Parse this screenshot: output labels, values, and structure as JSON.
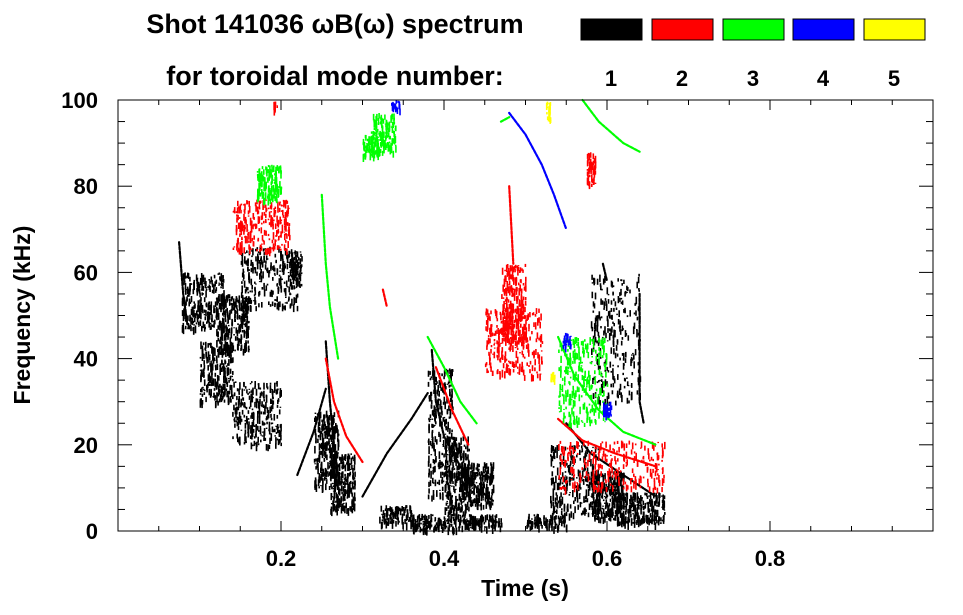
{
  "chart_data": {
    "type": "scatter",
    "title_line1": "Shot 141036 ωB(ω) spectrum",
    "title_line2": "for toroidal mode number:",
    "xlabel": "Time (s)",
    "ylabel": "Frequency (kHz)",
    "xlim": [
      0.0,
      1.0
    ],
    "ylim": [
      0,
      100
    ],
    "xticks": [
      {
        "value": 0.2,
        "label": "0.2"
      },
      {
        "value": 0.4,
        "label": "0.4"
      },
      {
        "value": 0.6,
        "label": "0.6"
      },
      {
        "value": 0.8,
        "label": "0.8"
      }
    ],
    "yticks": [
      {
        "value": 0,
        "label": "0"
      },
      {
        "value": 20,
        "label": "20"
      },
      {
        "value": 40,
        "label": "40"
      },
      {
        "value": 60,
        "label": "60"
      },
      {
        "value": 80,
        "label": "80"
      },
      {
        "value": 100,
        "label": "100"
      }
    ],
    "grid": false,
    "legend": {
      "placement": "top-right",
      "entries": [
        {
          "name": "1",
          "color": "#000000"
        },
        {
          "name": "2",
          "color": "#ff0000"
        },
        {
          "name": "3",
          "color": "#00ff00"
        },
        {
          "name": "4",
          "color": "#0000ff"
        },
        {
          "name": "5",
          "color": "#ffff00"
        }
      ]
    },
    "series": [
      {
        "name": "1",
        "color": "#000000",
        "blobs": [
          {
            "t0": 0.078,
            "t1": 0.13,
            "f0": 47,
            "f1": 60
          },
          {
            "t0": 0.1,
            "t1": 0.14,
            "f0": 30,
            "f1": 44
          },
          {
            "t0": 0.12,
            "t1": 0.16,
            "f0": 42,
            "f1": 55
          },
          {
            "t0": 0.15,
            "t1": 0.22,
            "f0": 52,
            "f1": 66
          },
          {
            "t0": 0.21,
            "t1": 0.225,
            "f0": 57,
            "f1": 65
          },
          {
            "t0": 0.24,
            "t1": 0.27,
            "f0": 10,
            "f1": 28
          },
          {
            "t0": 0.26,
            "t1": 0.29,
            "f0": 5,
            "f1": 18
          },
          {
            "t0": 0.38,
            "t1": 0.41,
            "f0": 8,
            "f1": 38
          },
          {
            "t0": 0.4,
            "t1": 0.43,
            "f0": 4,
            "f1": 22
          },
          {
            "t0": 0.42,
            "t1": 0.46,
            "f0": 6,
            "f1": 16
          },
          {
            "t0": 0.32,
            "t1": 0.36,
            "f0": 2,
            "f1": 6
          },
          {
            "t0": 0.36,
            "t1": 0.44,
            "f0": 0.5,
            "f1": 4
          },
          {
            "t0": 0.43,
            "t1": 0.47,
            "f0": 1,
            "f1": 4
          },
          {
            "t0": 0.5,
            "t1": 0.55,
            "f0": 1,
            "f1": 4
          },
          {
            "t0": 0.53,
            "t1": 0.59,
            "f0": 4,
            "f1": 20
          },
          {
            "t0": 0.58,
            "t1": 0.62,
            "f0": 3,
            "f1": 14
          },
          {
            "t0": 0.61,
            "t1": 0.67,
            "f0": 2,
            "f1": 9
          },
          {
            "t0": 0.58,
            "t1": 0.64,
            "f0": 30,
            "f1": 60
          },
          {
            "t0": 0.14,
            "t1": 0.2,
            "f0": 20,
            "f1": 35
          }
        ],
        "lines": [
          [
            [
              0.075,
              67
            ],
            [
              0.08,
              55
            ],
            [
              0.085,
              48
            ]
          ],
          [
            [
              0.22,
              13
            ],
            [
              0.24,
              23
            ],
            [
              0.255,
              33
            ]
          ],
          [
            [
              0.255,
              44
            ],
            [
              0.26,
              30
            ],
            [
              0.265,
              20
            ],
            [
              0.27,
              13
            ]
          ],
          [
            [
              0.3,
              8
            ],
            [
              0.33,
              18
            ],
            [
              0.36,
              26
            ],
            [
              0.38,
              32
            ]
          ],
          [
            [
              0.385,
              42
            ],
            [
              0.39,
              30
            ],
            [
              0.4,
              22
            ],
            [
              0.42,
              15
            ],
            [
              0.44,
              10
            ],
            [
              0.46,
              7
            ]
          ],
          [
            [
              0.55,
              25
            ],
            [
              0.58,
              18
            ],
            [
              0.62,
              13
            ],
            [
              0.66,
              8
            ]
          ],
          [
            [
              0.595,
              62
            ],
            [
              0.6,
              58
            ]
          ],
          [
            [
              0.64,
              55
            ],
            [
              0.64,
              30
            ],
            [
              0.645,
              25
            ]
          ]
        ]
      },
      {
        "name": "2",
        "color": "#ff0000",
        "blobs": [
          {
            "t0": 0.14,
            "t1": 0.21,
            "f0": 65,
            "f1": 77
          },
          {
            "t0": 0.45,
            "t1": 0.52,
            "f0": 36,
            "f1": 52
          },
          {
            "t0": 0.47,
            "t1": 0.5,
            "f0": 44,
            "f1": 62
          },
          {
            "t0": 0.54,
            "t1": 0.67,
            "f0": 10,
            "f1": 21
          },
          {
            "t0": 0.19,
            "t1": 0.195,
            "f0": 98,
            "f1": 100
          },
          {
            "t0": 0.575,
            "t1": 0.585,
            "f0": 80,
            "f1": 88
          }
        ],
        "lines": [
          [
            [
              0.255,
              40
            ],
            [
              0.265,
              30
            ],
            [
              0.28,
              22
            ],
            [
              0.3,
              16
            ]
          ],
          [
            [
              0.39,
              38
            ],
            [
              0.41,
              28
            ],
            [
              0.43,
              20
            ]
          ],
          [
            [
              0.48,
              80
            ],
            [
              0.485,
              62
            ]
          ],
          [
            [
              0.54,
              26
            ],
            [
              0.57,
              21
            ],
            [
              0.61,
              18
            ],
            [
              0.66,
              15
            ]
          ],
          [
            [
              0.325,
              56
            ],
            [
              0.33,
              52
            ]
          ]
        ]
      },
      {
        "name": "3",
        "color": "#00ff00",
        "blobs": [
          {
            "t0": 0.17,
            "t1": 0.2,
            "f0": 77,
            "f1": 85
          },
          {
            "t0": 0.3,
            "t1": 0.32,
            "f0": 87,
            "f1": 92
          },
          {
            "t0": 0.31,
            "t1": 0.34,
            "f0": 88,
            "f1": 97
          },
          {
            "t0": 0.54,
            "t1": 0.6,
            "f0": 25,
            "f1": 45
          }
        ],
        "lines": [
          [
            [
              0.25,
              78
            ],
            [
              0.255,
              62
            ],
            [
              0.26,
              52
            ],
            [
              0.27,
              40
            ]
          ],
          [
            [
              0.38,
              45
            ],
            [
              0.4,
              38
            ],
            [
              0.42,
              30
            ],
            [
              0.44,
              25
            ]
          ],
          [
            [
              0.57,
              100
            ],
            [
              0.59,
              95
            ],
            [
              0.62,
              90
            ],
            [
              0.64,
              88
            ]
          ],
          [
            [
              0.54,
              45
            ],
            [
              0.56,
              36
            ],
            [
              0.59,
              28
            ],
            [
              0.62,
              23
            ],
            [
              0.66,
              20
            ]
          ],
          [
            [
              0.47,
              95
            ],
            [
              0.48,
              96
            ]
          ]
        ]
      },
      {
        "name": "4",
        "color": "#0000ff",
        "blobs": [
          {
            "t0": 0.335,
            "t1": 0.345,
            "f0": 98,
            "f1": 100
          },
          {
            "t0": 0.545,
            "t1": 0.555,
            "f0": 43,
            "f1": 46
          },
          {
            "t0": 0.595,
            "t1": 0.605,
            "f0": 27,
            "f1": 30
          }
        ],
        "lines": [
          [
            [
              0.48,
              97
            ],
            [
              0.5,
              92
            ],
            [
              0.52,
              85
            ],
            [
              0.535,
              78
            ],
            [
              0.55,
              70
            ]
          ]
        ]
      },
      {
        "name": "5",
        "color": "#ffff00",
        "blobs": [
          {
            "t0": 0.525,
            "t1": 0.53,
            "f0": 95,
            "f1": 100
          },
          {
            "t0": 0.53,
            "t1": 0.535,
            "f0": 35,
            "f1": 37
          }
        ],
        "lines": []
      }
    ]
  }
}
